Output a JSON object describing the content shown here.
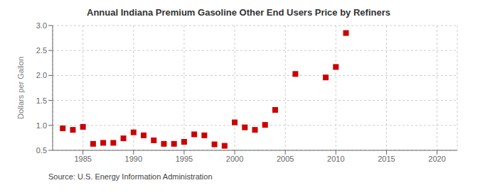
{
  "chart_data": {
    "type": "scatter",
    "title": "Annual Indiana Premium Gasoline Other End Users Price by Refiners",
    "y_label": "Dollars per Gallon",
    "annotations": [
      "Source: U.S. Energy Information Administration"
    ],
    "x": [
      1983,
      1984,
      1985,
      1986,
      1987,
      1988,
      1989,
      1990,
      1991,
      1992,
      1993,
      1994,
      1995,
      1996,
      1997,
      1998,
      1999,
      2000,
      2001,
      2002,
      2003,
      2004,
      2006,
      2009,
      2010,
      2011
    ],
    "values": [
      0.94,
      0.91,
      0.97,
      0.63,
      0.65,
      0.65,
      0.74,
      0.86,
      0.8,
      0.7,
      0.63,
      0.63,
      0.67,
      0.82,
      0.8,
      0.62,
      0.59,
      1.06,
      0.96,
      0.91,
      1.01,
      1.31,
      2.03,
      1.96,
      2.17,
      2.85
    ],
    "color": "#cc0000",
    "marker": "square",
    "xlim": [
      1982,
      2022
    ],
    "ylim": [
      0.5,
      3.0
    ],
    "xticks": [
      1985,
      1990,
      1995,
      2000,
      2005,
      2010,
      2015,
      2020
    ],
    "yticks": [
      0.5,
      {
        "value": 1,
        "label": "1.0"
      },
      1.5,
      {
        "value": 2,
        "label": "2.0"
      },
      2.5,
      {
        "value": 3,
        "label": "3.0"
      }
    ],
    "grid": true
  }
}
